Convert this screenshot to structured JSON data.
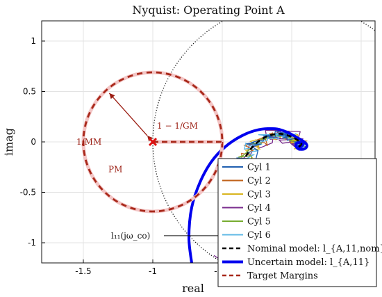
{
  "chart_data": {
    "type": "line",
    "title": "Nyquist: Operating Point A",
    "xlabel": "real",
    "ylabel": "imag",
    "xlim": [
      -1.8,
      0.6
    ],
    "ylim": [
      -1.2,
      1.2
    ],
    "xticks": [
      -1.5,
      -1,
      -0.5
    ],
    "xtick_labels": [
      "-1.5",
      "-1",
      "-0.5"
    ],
    "yticks": [
      1,
      0.5,
      0,
      -0.5,
      -1
    ],
    "ytick_labels": [
      "1",
      "0.5",
      "0",
      "-0.5",
      "-1"
    ],
    "grid": true,
    "legend_position": "bottom-right",
    "series": [
      {
        "name": "Cyl 1",
        "color": "#1f5fb0",
        "style": "solid"
      },
      {
        "name": "Cyl 2",
        "color": "#c0621a",
        "style": "solid"
      },
      {
        "name": "Cyl 3",
        "color": "#d8b41e",
        "style": "solid"
      },
      {
        "name": "Cyl 4",
        "color": "#7a2c8e",
        "style": "solid"
      },
      {
        "name": "Cyl 5",
        "color": "#77ac30",
        "style": "solid"
      },
      {
        "name": "Cyl 6",
        "color": "#5fb8e6",
        "style": "solid"
      },
      {
        "name": "Nominal model: ",
        "name_math": "l_{A,11,nom}",
        "color": "#000000",
        "style": "dashed"
      },
      {
        "name": "Uncertain model: ",
        "name_math": "l_{A,11}",
        "color": "#0000ee",
        "style": "solid-thick"
      },
      {
        "name": "Target Margins",
        "color": "#a8281a",
        "style": "dashed"
      }
    ],
    "unit_circle": {
      "center": [
        0,
        0
      ],
      "radius": 1,
      "style": "dotted"
    },
    "target_margin_circle": {
      "center": [
        -1,
        0
      ],
      "radius": 0.5
    },
    "critical_point": [
      -1,
      0
    ],
    "gm_segment": {
      "from": [
        -1,
        0
      ],
      "to": [
        -0.5,
        0
      ]
    },
    "uncertain_curve": [
      [
        -0.72,
        -1.2
      ],
      [
        -0.74,
        -0.95
      ],
      [
        -0.72,
        -0.65
      ],
      [
        -0.66,
        -0.4
      ],
      [
        -0.58,
        -0.2
      ],
      [
        -0.48,
        -0.05
      ],
      [
        -0.36,
        0.06
      ],
      [
        -0.24,
        0.12
      ],
      [
        -0.12,
        0.13
      ],
      [
        -0.04,
        0.1
      ],
      [
        0.03,
        0.05
      ],
      [
        0.09,
        0.0
      ],
      [
        0.11,
        -0.04
      ],
      [
        0.09,
        -0.07
      ],
      [
        0.05,
        -0.07
      ],
      [
        0.03,
        -0.04
      ],
      [
        0.04,
        -0.01
      ],
      [
        0.07,
        -0.01
      ],
      [
        0.08,
        -0.03
      ],
      [
        0.06,
        -0.05
      ],
      [
        0.05,
        -0.03
      ]
    ],
    "nominal_curve": [
      [
        -0.4,
        -1.2
      ],
      [
        -0.42,
        -0.9
      ],
      [
        -0.42,
        -0.6
      ],
      [
        -0.38,
        -0.3
      ],
      [
        -0.3,
        -0.08
      ],
      [
        -0.2,
        0.04
      ],
      [
        -0.1,
        0.08
      ],
      [
        -0.02,
        0.06
      ],
      [
        0.04,
        0.02
      ],
      [
        0.07,
        -0.02
      ],
      [
        0.05,
        -0.05
      ]
    ],
    "annotations": {
      "mm_label": "1/MM",
      "gm_label": "1 − 1/GM",
      "pm_label": "PM",
      "crossover_label": "l₁₁(jω_co)",
      "crossover_point": [
        -0.42,
        -0.93
      ]
    }
  }
}
